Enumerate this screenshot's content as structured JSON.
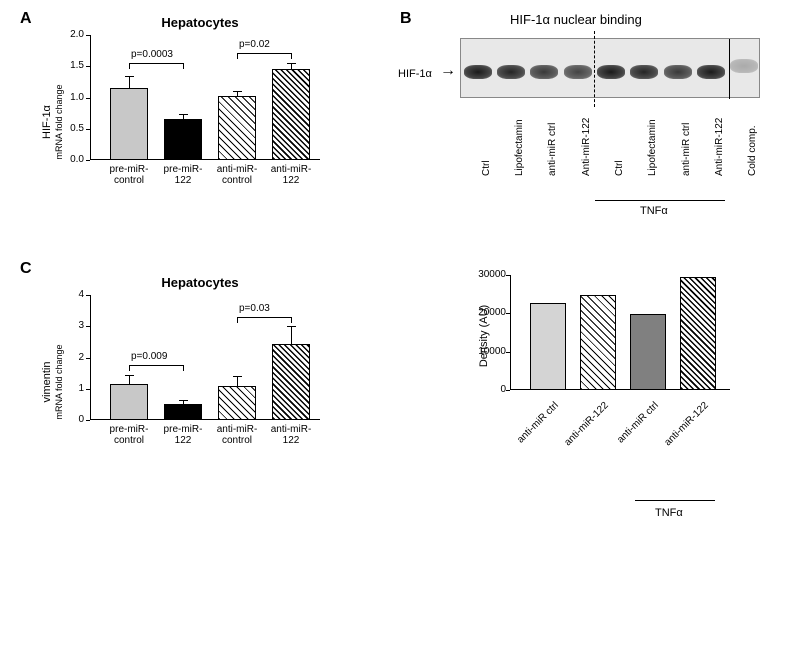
{
  "panelA": {
    "label": "A",
    "title": "Hepatocytes",
    "ylabel_line1": "HIF-1α",
    "ylabel_line2": "mRNA fold change",
    "ymax": 2.0,
    "ytick_step": 0.5,
    "yticks": [
      "0.0",
      "0.5",
      "1.0",
      "1.5",
      "2.0"
    ],
    "bars": [
      {
        "label_l1": "pre-miR-",
        "label_l2": "control",
        "value": 1.15,
        "err": 0.18,
        "fill": "#c8c8c8",
        "pattern": "none"
      },
      {
        "label_l1": "pre-miR-",
        "label_l2": "122",
        "value": 0.65,
        "err": 0.07,
        "fill": "#000000",
        "pattern": "none"
      },
      {
        "label_l1": "anti-miR-",
        "label_l2": "control",
        "value": 1.02,
        "err": 0.07,
        "fill": "#ffffff",
        "pattern": "hatch-thin"
      },
      {
        "label_l1": "anti-miR-",
        "label_l2": "122",
        "value": 1.45,
        "err": 0.08,
        "fill": "#ffffff",
        "pattern": "hatch-thick"
      }
    ],
    "sig": [
      {
        "from": 0,
        "to": 1,
        "y": 1.55,
        "label": "p=0.0003"
      },
      {
        "from": 2,
        "to": 3,
        "y": 1.72,
        "label": "p=0.02"
      }
    ]
  },
  "panelC": {
    "label": "C",
    "title": "Hepatocytes",
    "ylabel_line1": "vimentin",
    "ylabel_line2": "mRNA fold change",
    "ymax": 4,
    "yticks": [
      "0",
      "1",
      "2",
      "3",
      "4"
    ],
    "bars": [
      {
        "label_l1": "pre-miR-",
        "label_l2": "control",
        "value": 1.15,
        "err": 0.25,
        "fill": "#c8c8c8",
        "pattern": "none"
      },
      {
        "label_l1": "pre-miR-",
        "label_l2": "122",
        "value": 0.5,
        "err": 0.1,
        "fill": "#000000",
        "pattern": "none"
      },
      {
        "label_l1": "anti-miR-",
        "label_l2": "control",
        "value": 1.1,
        "err": 0.28,
        "fill": "#ffffff",
        "pattern": "hatch-thin"
      },
      {
        "label_l1": "anti-miR-",
        "label_l2": "122",
        "value": 2.42,
        "err": 0.55,
        "fill": "#ffffff",
        "pattern": "hatch-thick"
      }
    ],
    "sig": [
      {
        "from": 0,
        "to": 1,
        "y": 1.75,
        "label": "p=0.009"
      },
      {
        "from": 2,
        "to": 3,
        "y": 3.3,
        "label": "p=0.03"
      }
    ]
  },
  "panelB": {
    "label": "B",
    "title": "HIF-1α nuclear binding",
    "arrow_label": "HIF-1α",
    "lanes": [
      "Ctrl",
      "Lipofectamin",
      "anti-miR ctrl",
      "Anti-miR-122",
      "Ctrl",
      "Lipofectamin",
      "anti-miR ctrl",
      "Anti-miR-122",
      "Cold comp."
    ],
    "tnf_label": "TNFα",
    "density_chart": {
      "ylabel": "Density (AU)",
      "ymax": 30000,
      "yticks": [
        "0",
        "10000",
        "20000",
        "30000"
      ],
      "bars": [
        {
          "label": "anti-miR ctrl",
          "value": 22800,
          "fill": "#d4d4d4",
          "pattern": "none"
        },
        {
          "label": "anti-miR-122",
          "value": 24900,
          "fill": "#ffffff",
          "pattern": "hatch-thin"
        },
        {
          "label": "anti-miR ctrl",
          "value": 19800,
          "fill": "#808080",
          "pattern": "none"
        },
        {
          "label": "anti-miR-122",
          "value": 29400,
          "fill": "#ffffff",
          "pattern": "hatch-thick"
        }
      ],
      "tnf_label": "TNFα"
    }
  }
}
